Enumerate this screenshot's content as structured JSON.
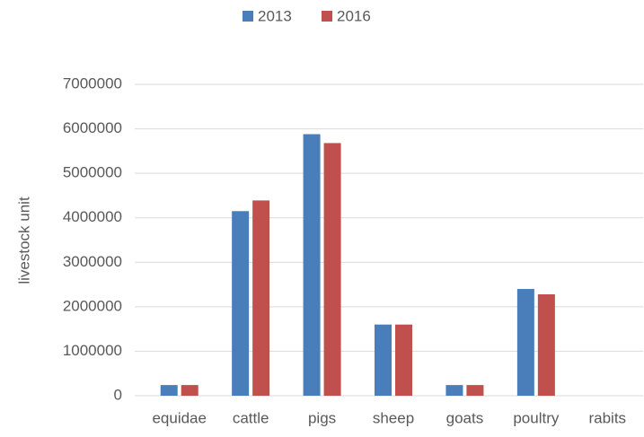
{
  "chart_data": {
    "type": "bar",
    "y_label": "livestock unit",
    "categories": [
      "equidae",
      "cattle",
      "pigs",
      "sheep",
      "goats",
      "poultry",
      "rabits"
    ],
    "series": [
      {
        "name": "2013",
        "color": "#4a7ebb",
        "values": [
          240000,
          4150000,
          5880000,
          1600000,
          240000,
          2400000,
          0
        ]
      },
      {
        "name": "2016",
        "color": "#c0504d",
        "values": [
          240000,
          4390000,
          5680000,
          1600000,
          240000,
          2280000,
          0
        ]
      }
    ],
    "ylim": [
      0,
      7000000
    ],
    "yticks": [
      0,
      1000000,
      2000000,
      3000000,
      4000000,
      5000000,
      6000000,
      7000000
    ],
    "grid": true,
    "legend": "top"
  }
}
